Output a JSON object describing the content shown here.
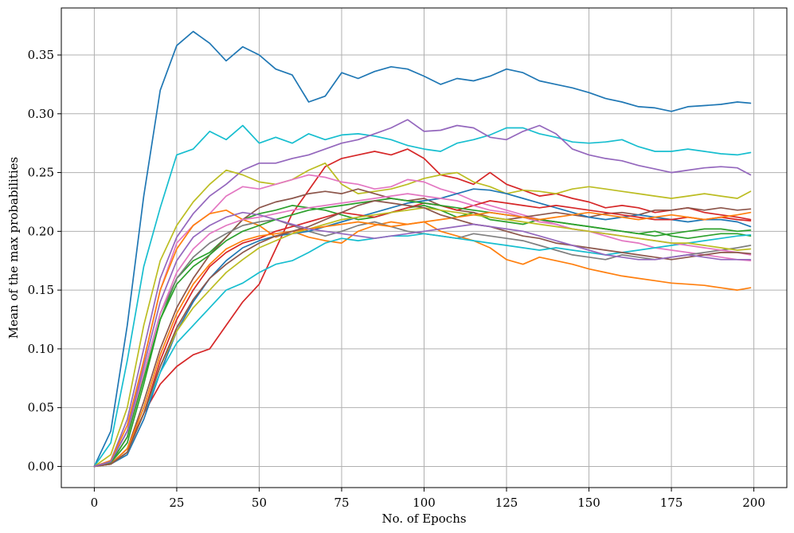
{
  "chart_data": {
    "type": "line",
    "xlabel": "No. of Epochs",
    "ylabel": "Mean of the max probabilities",
    "xlim": [
      -10,
      210
    ],
    "ylim": [
      -0.018,
      0.39
    ],
    "xticks": [
      0,
      25,
      50,
      75,
      100,
      125,
      150,
      175,
      200
    ],
    "yticks": [
      0.0,
      0.05,
      0.1,
      0.15,
      0.2,
      0.25,
      0.3,
      0.35
    ],
    "xtick_labels": [
      "0",
      "25",
      "50",
      "75",
      "100",
      "125",
      "150",
      "175",
      "200"
    ],
    "ytick_labels": [
      "0.00",
      "0.05",
      "0.10",
      "0.15",
      "0.20",
      "0.25",
      "0.30",
      "0.35"
    ],
    "grid": true,
    "legend": "none",
    "x": [
      0,
      5,
      10,
      15,
      20,
      25,
      30,
      35,
      40,
      45,
      50,
      55,
      60,
      65,
      70,
      75,
      80,
      85,
      90,
      95,
      100,
      105,
      110,
      115,
      120,
      125,
      130,
      135,
      140,
      145,
      150,
      155,
      160,
      165,
      170,
      175,
      180,
      185,
      190,
      195,
      199
    ],
    "series": [
      {
        "color": "#1f77b4",
        "values": [
          0.0,
          0.03,
          0.12,
          0.23,
          0.32,
          0.358,
          0.37,
          0.36,
          0.345,
          0.357,
          0.35,
          0.338,
          0.333,
          0.31,
          0.315,
          0.335,
          0.33,
          0.336,
          0.34,
          0.338,
          0.332,
          0.325,
          0.33,
          0.328,
          0.332,
          0.338,
          0.335,
          0.328,
          0.325,
          0.322,
          0.318,
          0.313,
          0.31,
          0.306,
          0.305,
          0.302,
          0.306,
          0.307,
          0.308,
          0.31,
          0.309
        ]
      },
      {
        "color": "#17becf",
        "values": [
          0.0,
          0.02,
          0.09,
          0.17,
          0.22,
          0.265,
          0.27,
          0.285,
          0.278,
          0.29,
          0.275,
          0.28,
          0.275,
          0.283,
          0.278,
          0.282,
          0.283,
          0.281,
          0.278,
          0.273,
          0.27,
          0.268,
          0.275,
          0.278,
          0.282,
          0.288,
          0.288,
          0.283,
          0.28,
          0.276,
          0.275,
          0.276,
          0.278,
          0.272,
          0.268,
          0.268,
          0.27,
          0.268,
          0.266,
          0.265,
          0.267
        ]
      },
      {
        "color": "#9467bd",
        "values": [
          0.0,
          0.005,
          0.04,
          0.1,
          0.16,
          0.195,
          0.215,
          0.23,
          0.24,
          0.252,
          0.258,
          0.258,
          0.262,
          0.265,
          0.27,
          0.275,
          0.278,
          0.283,
          0.288,
          0.295,
          0.285,
          0.286,
          0.29,
          0.288,
          0.28,
          0.278,
          0.285,
          0.29,
          0.283,
          0.27,
          0.265,
          0.262,
          0.26,
          0.256,
          0.253,
          0.25,
          0.252,
          0.254,
          0.255,
          0.254,
          0.248
        ]
      },
      {
        "color": "#d62728",
        "values": [
          0.0,
          0.002,
          0.015,
          0.045,
          0.07,
          0.085,
          0.095,
          0.1,
          0.12,
          0.14,
          0.155,
          0.185,
          0.215,
          0.235,
          0.255,
          0.262,
          0.265,
          0.268,
          0.265,
          0.27,
          0.262,
          0.248,
          0.245,
          0.24,
          0.25,
          0.24,
          0.235,
          0.23,
          0.232,
          0.228,
          0.225,
          0.22,
          0.222,
          0.22,
          0.216,
          0.218,
          0.22,
          0.216,
          0.214,
          0.212,
          0.21
        ]
      },
      {
        "color": "#bcbd22",
        "values": [
          0.0,
          0.01,
          0.05,
          0.12,
          0.175,
          0.205,
          0.225,
          0.24,
          0.252,
          0.248,
          0.242,
          0.24,
          0.244,
          0.252,
          0.258,
          0.24,
          0.232,
          0.234,
          0.236,
          0.24,
          0.245,
          0.248,
          0.25,
          0.242,
          0.238,
          0.232,
          0.235,
          0.234,
          0.232,
          0.236,
          0.238,
          0.236,
          0.234,
          0.232,
          0.23,
          0.228,
          0.23,
          0.232,
          0.23,
          0.228,
          0.234
        ]
      },
      {
        "color": "#e377c2",
        "values": [
          0.0,
          0.005,
          0.03,
          0.09,
          0.15,
          0.19,
          0.205,
          0.215,
          0.23,
          0.238,
          0.236,
          0.24,
          0.244,
          0.248,
          0.246,
          0.242,
          0.24,
          0.236,
          0.238,
          0.244,
          0.242,
          0.236,
          0.232,
          0.226,
          0.222,
          0.218,
          0.214,
          0.21,
          0.206,
          0.202,
          0.2,
          0.196,
          0.192,
          0.19,
          0.186,
          0.184,
          0.182,
          0.18,
          0.178,
          0.176,
          0.175
        ]
      },
      {
        "color": "#ff7f0e",
        "values": [
          0.0,
          0.005,
          0.035,
          0.09,
          0.15,
          0.185,
          0.205,
          0.215,
          0.218,
          0.21,
          0.205,
          0.195,
          0.2,
          0.195,
          0.192,
          0.19,
          0.2,
          0.205,
          0.208,
          0.206,
          0.208,
          0.2,
          0.196,
          0.192,
          0.186,
          0.176,
          0.172,
          0.178,
          0.175,
          0.172,
          0.168,
          0.165,
          0.162,
          0.16,
          0.158,
          0.156,
          0.155,
          0.154,
          0.152,
          0.15,
          0.152
        ]
      },
      {
        "color": "#2ca02c",
        "values": [
          0.0,
          0.003,
          0.02,
          0.07,
          0.125,
          0.16,
          0.175,
          0.182,
          0.195,
          0.21,
          0.215,
          0.218,
          0.222,
          0.22,
          0.218,
          0.214,
          0.21,
          0.212,
          0.216,
          0.22,
          0.222,
          0.218,
          0.212,
          0.216,
          0.21,
          0.208,
          0.206,
          0.21,
          0.208,
          0.206,
          0.204,
          0.202,
          0.2,
          0.198,
          0.2,
          0.196,
          0.194,
          0.196,
          0.198,
          0.198,
          0.196
        ]
      },
      {
        "color": "#8c564b",
        "values": [
          0.0,
          0.002,
          0.015,
          0.055,
          0.1,
          0.135,
          0.16,
          0.18,
          0.195,
          0.21,
          0.22,
          0.225,
          0.228,
          0.232,
          0.234,
          0.232,
          0.236,
          0.232,
          0.228,
          0.226,
          0.228,
          0.222,
          0.218,
          0.216,
          0.212,
          0.21,
          0.212,
          0.214,
          0.216,
          0.214,
          0.212,
          0.215,
          0.216,
          0.214,
          0.218,
          0.218,
          0.22,
          0.218,
          0.22,
          0.218,
          0.219
        ]
      },
      {
        "color": "#7f7f7f",
        "values": [
          0.0,
          0.004,
          0.03,
          0.08,
          0.13,
          0.16,
          0.178,
          0.19,
          0.198,
          0.205,
          0.208,
          0.21,
          0.205,
          0.2,
          0.196,
          0.2,
          0.205,
          0.208,
          0.204,
          0.2,
          0.198,
          0.196,
          0.194,
          0.198,
          0.196,
          0.194,
          0.192,
          0.188,
          0.184,
          0.18,
          0.178,
          0.176,
          0.18,
          0.178,
          0.176,
          0.178,
          0.18,
          0.182,
          0.184,
          0.186,
          0.188
        ]
      },
      {
        "color": "#1f77b4",
        "values": [
          0.0,
          0.002,
          0.01,
          0.04,
          0.08,
          0.115,
          0.14,
          0.16,
          0.175,
          0.186,
          0.192,
          0.196,
          0.198,
          0.2,
          0.204,
          0.208,
          0.212,
          0.216,
          0.22,
          0.224,
          0.226,
          0.228,
          0.232,
          0.236,
          0.235,
          0.232,
          0.228,
          0.224,
          0.22,
          0.216,
          0.212,
          0.21,
          0.212,
          0.214,
          0.212,
          0.21,
          0.208,
          0.21,
          0.21,
          0.208,
          0.204
        ]
      },
      {
        "color": "#d62728",
        "values": [
          0.0,
          0.002,
          0.012,
          0.045,
          0.09,
          0.125,
          0.15,
          0.17,
          0.182,
          0.19,
          0.194,
          0.2,
          0.204,
          0.208,
          0.212,
          0.216,
          0.214,
          0.212,
          0.216,
          0.22,
          0.224,
          0.222,
          0.218,
          0.222,
          0.226,
          0.224,
          0.222,
          0.22,
          0.222,
          0.22,
          0.218,
          0.216,
          0.214,
          0.212,
          0.21,
          0.21,
          0.212,
          0.21,
          0.212,
          0.21,
          0.209
        ]
      },
      {
        "color": "#17becf",
        "values": [
          0.0,
          0.002,
          0.012,
          0.045,
          0.08,
          0.105,
          0.12,
          0.135,
          0.15,
          0.156,
          0.165,
          0.172,
          0.175,
          0.182,
          0.19,
          0.194,
          0.192,
          0.194,
          0.196,
          0.196,
          0.198,
          0.196,
          0.194,
          0.192,
          0.19,
          0.188,
          0.186,
          0.184,
          0.186,
          0.184,
          0.182,
          0.18,
          0.182,
          0.184,
          0.186,
          0.188,
          0.19,
          0.192,
          0.194,
          0.196,
          0.197
        ]
      },
      {
        "color": "#e377c2",
        "values": [
          0.0,
          0.003,
          0.025,
          0.08,
          0.13,
          0.165,
          0.185,
          0.198,
          0.205,
          0.21,
          0.212,
          0.215,
          0.218,
          0.22,
          0.222,
          0.224,
          0.226,
          0.228,
          0.23,
          0.232,
          0.23,
          0.228,
          0.226,
          0.222,
          0.218,
          0.216,
          0.212,
          0.208,
          0.206,
          0.202,
          0.2,
          0.198,
          0.196,
          0.194,
          0.192,
          0.19,
          0.188,
          0.186,
          0.184,
          0.182,
          0.18
        ]
      },
      {
        "color": "#bcbd22",
        "values": [
          0.0,
          0.002,
          0.012,
          0.045,
          0.085,
          0.115,
          0.135,
          0.15,
          0.165,
          0.176,
          0.186,
          0.192,
          0.198,
          0.202,
          0.206,
          0.21,
          0.212,
          0.214,
          0.216,
          0.218,
          0.22,
          0.218,
          0.216,
          0.214,
          0.212,
          0.21,
          0.208,
          0.206,
          0.204,
          0.202,
          0.2,
          0.198,
          0.196,
          0.194,
          0.192,
          0.19,
          0.19,
          0.188,
          0.186,
          0.184,
          0.185
        ]
      },
      {
        "color": "#2ca02c",
        "values": [
          0.0,
          0.003,
          0.025,
          0.075,
          0.125,
          0.155,
          0.17,
          0.18,
          0.192,
          0.2,
          0.205,
          0.21,
          0.214,
          0.218,
          0.22,
          0.222,
          0.224,
          0.226,
          0.228,
          0.226,
          0.224,
          0.222,
          0.22,
          0.218,
          0.216,
          0.214,
          0.212,
          0.21,
          0.208,
          0.206,
          0.204,
          0.202,
          0.2,
          0.198,
          0.196,
          0.198,
          0.2,
          0.202,
          0.202,
          0.2,
          0.201
        ]
      },
      {
        "color": "#ff7f0e",
        "values": [
          0.0,
          0.002,
          0.015,
          0.05,
          0.095,
          0.13,
          0.155,
          0.172,
          0.185,
          0.192,
          0.196,
          0.198,
          0.2,
          0.202,
          0.204,
          0.206,
          0.208,
          0.206,
          0.204,
          0.206,
          0.208,
          0.21,
          0.212,
          0.214,
          0.216,
          0.214,
          0.212,
          0.21,
          0.212,
          0.214,
          0.216,
          0.214,
          0.212,
          0.21,
          0.212,
          0.214,
          0.212,
          0.21,
          0.212,
          0.214,
          0.216
        ]
      },
      {
        "color": "#8c564b",
        "values": [
          0.0,
          0.002,
          0.012,
          0.045,
          0.085,
          0.118,
          0.142,
          0.16,
          0.172,
          0.182,
          0.19,
          0.196,
          0.2,
          0.204,
          0.21,
          0.216,
          0.222,
          0.226,
          0.224,
          0.222,
          0.22,
          0.214,
          0.21,
          0.206,
          0.204,
          0.2,
          0.196,
          0.194,
          0.19,
          0.188,
          0.186,
          0.184,
          0.182,
          0.18,
          0.178,
          0.176,
          0.178,
          0.18,
          0.182,
          0.182,
          0.181
        ]
      },
      {
        "color": "#9467bd",
        "values": [
          0.0,
          0.004,
          0.03,
          0.085,
          0.14,
          0.175,
          0.195,
          0.205,
          0.212,
          0.216,
          0.214,
          0.21,
          0.206,
          0.202,
          0.2,
          0.198,
          0.196,
          0.194,
          0.196,
          0.198,
          0.2,
          0.202,
          0.204,
          0.206,
          0.204,
          0.202,
          0.2,
          0.196,
          0.192,
          0.188,
          0.184,
          0.18,
          0.178,
          0.176,
          0.176,
          0.178,
          0.18,
          0.178,
          0.176,
          0.176,
          0.176
        ]
      }
    ]
  }
}
